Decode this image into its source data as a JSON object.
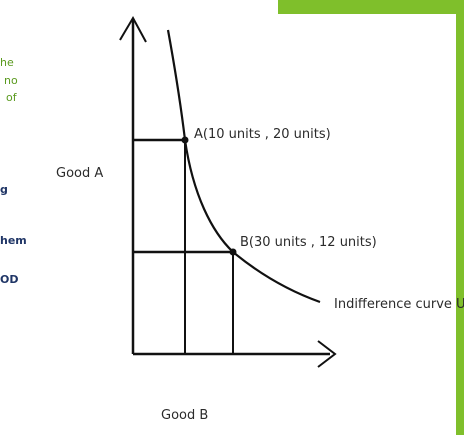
{
  "left_fragments": {
    "green_1": "he",
    "green_2": "no",
    "green_3": "of",
    "navy_1": "g",
    "navy_2": "hem",
    "navy_3": "OD"
  },
  "diagram": {
    "y_axis_label": "Good A",
    "x_axis_label": "Good B",
    "point_a_label": "A(10 units , 20 units)",
    "point_b_label": "B(30 units , 12 units)",
    "curve_label": "Indifference curve U"
  },
  "colors": {
    "accent_green": "#7fbf2b",
    "fragment_green": "#5a9a1e",
    "fragment_navy": "#1f3566",
    "ink": "#111111"
  }
}
